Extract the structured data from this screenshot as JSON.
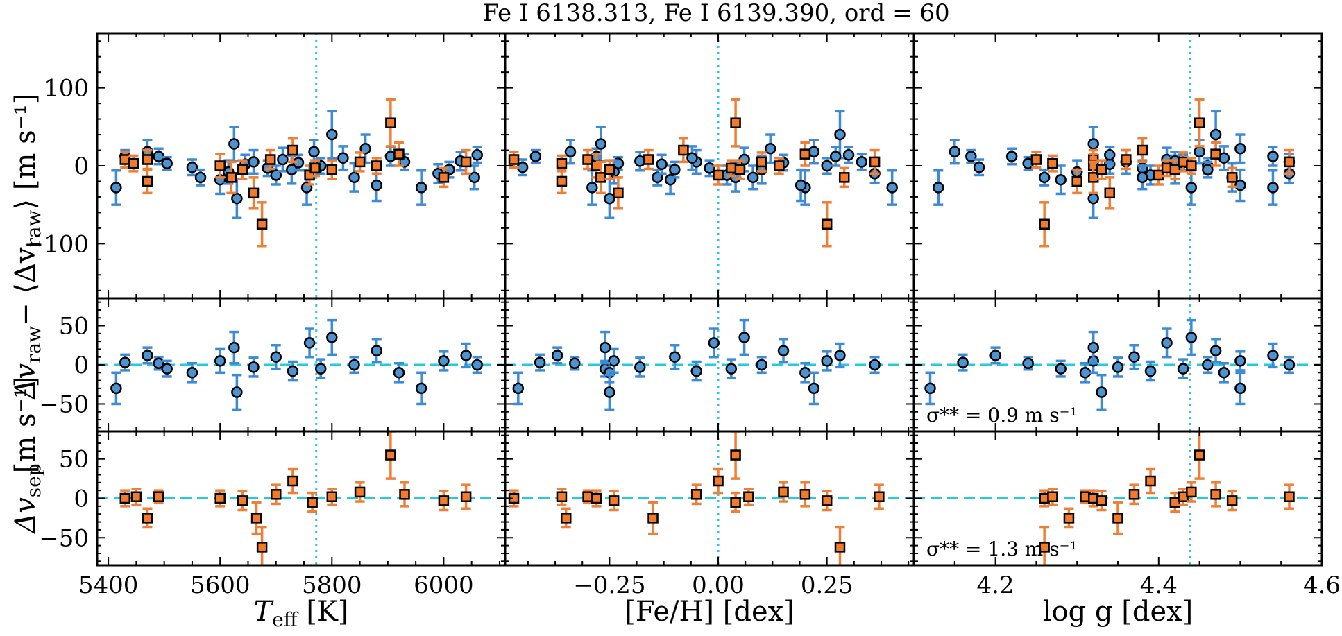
{
  "title": "Fe I 6138.313, Fe I 6139.390, ord = 60",
  "colors": {
    "blue_marker": "#4d93cf",
    "blue_err": "#3d8ad6",
    "orange_marker": "#f27b2b",
    "orange_err": "#ef7f36",
    "vline": "#29c7de",
    "hline": "#22ccdd"
  },
  "rows": {
    "top": {
      "ylabel_main": "Δv",
      "ylabel_sub": "raw",
      "ylabel_rest": "− ⟨Δv",
      "ylabel_sub2": "raw",
      "ylabel_end": "⟩ [m s⁻¹]",
      "ylim": [
        -170,
        170
      ],
      "yticks": [
        -100,
        0,
        100
      ]
    },
    "mid": {
      "ylim": [
        -85,
        85
      ],
      "yticks": [
        -50,
        0,
        50
      ],
      "sigma_label": "σ** = 0.9 m s⁻¹"
    },
    "bot": {
      "ylabel_main": "Δv",
      "ylabel_sub": "sep",
      "ylim": [
        -85,
        85
      ],
      "yticks": [
        -50,
        0,
        50
      ],
      "sigma_label": "σ** = 1.3 m s⁻¹"
    },
    "shared_ylabel": "[m s⁻¹]"
  },
  "columns": [
    {
      "key": "teff",
      "xlabel": "T",
      "xlabel_sub": "eff",
      "xlabel_rest": " [K]",
      "xlim": [
        5380,
        6110
      ],
      "xticks": [
        5400,
        5600,
        5800,
        6000
      ],
      "xtick_labels": [
        "5400",
        "5600",
        "5800",
        "6000"
      ],
      "vline": 5772
    },
    {
      "key": "feh",
      "xlabel": "[Fe/H] [dex]",
      "xlim": [
        -0.49,
        0.45
      ],
      "xticks": [
        -0.25,
        0.0,
        0.25
      ],
      "xtick_labels": [
        "−0.25",
        "0.00",
        "0.25"
      ],
      "vline": 0.0
    },
    {
      "key": "logg",
      "xlabel": "log g [dex]",
      "xlim": [
        4.1,
        4.6
      ],
      "xticks": [
        4.2,
        4.4,
        4.6
      ],
      "xtick_labels": [
        "4.2",
        "4.4",
        "4.6"
      ],
      "vline": 4.438
    }
  ],
  "chart_data": [
    {
      "type": "scatter",
      "panel": "top",
      "title": "Fe I 6138.313, Fe I 6139.390, ord = 60",
      "series": [
        {
          "name": "",
          "marker": "circle",
          "points": [
            {
              "teff": 5414,
              "feh": -0.29,
              "logg": 4.13,
              "y": -28,
              "err": 22
            },
            {
              "teff": 5430,
              "feh": -0.42,
              "logg": 4.17,
              "y": 12,
              "err": 8
            },
            {
              "teff": 5470,
              "feh": -0.34,
              "logg": 4.15,
              "y": 18,
              "err": 15
            },
            {
              "teff": 5490,
              "feh": -0.28,
              "logg": 4.22,
              "y": 12,
              "err": 10
            },
            {
              "teff": 5505,
              "feh": -0.23,
              "logg": 4.24,
              "y": 3,
              "err": 8
            },
            {
              "teff": 5550,
              "feh": -0.45,
              "logg": 4.18,
              "y": -2,
              "err": 10
            },
            {
              "teff": 5565,
              "feh": -0.14,
              "logg": 4.26,
              "y": -15,
              "err": 10
            },
            {
              "teff": 5600,
              "feh": -0.11,
              "logg": 4.28,
              "y": -18,
              "err": 18
            },
            {
              "teff": 5615,
              "feh": -0.24,
              "logg": 4.3,
              "y": -8,
              "err": 15
            },
            {
              "teff": 5625,
              "feh": -0.27,
              "logg": 4.32,
              "y": 28,
              "err": 22
            },
            {
              "teff": 5630,
              "feh": -0.25,
              "logg": 4.32,
              "y": -42,
              "err": 25
            },
            {
              "teff": 5645,
              "feh": -0.13,
              "logg": 4.34,
              "y": 2,
              "err": 12
            },
            {
              "teff": 5660,
              "feh": -0.05,
              "logg": 4.36,
              "y": 5,
              "err": 15
            },
            {
              "teff": 5685,
              "feh": -0.02,
              "logg": 4.38,
              "y": -3,
              "err": 10
            },
            {
              "teff": 5700,
              "feh": 0.02,
              "logg": 4.39,
              "y": -12,
              "err": 12
            },
            {
              "teff": 5712,
              "feh": 0.06,
              "logg": 4.41,
              "y": 8,
              "err": 15
            },
            {
              "teff": 5728,
              "feh": 0.1,
              "logg": 4.42,
              "y": -5,
              "err": 18
            },
            {
              "teff": 5740,
              "feh": 0.15,
              "logg": 4.43,
              "y": 4,
              "err": 10
            },
            {
              "teff": 5755,
              "feh": 0.2,
              "logg": 4.44,
              "y": -28,
              "err": 22
            },
            {
              "teff": 5768,
              "feh": 0.22,
              "logg": 4.45,
              "y": 18,
              "err": 15
            },
            {
              "teff": 5780,
              "feh": 0.25,
              "logg": 4.46,
              "y": 0,
              "err": 10
            },
            {
              "teff": 5800,
              "feh": 0.28,
              "logg": 4.47,
              "y": 40,
              "err": 30
            },
            {
              "teff": 5820,
              "feh": -0.06,
              "logg": 4.48,
              "y": 10,
              "err": 15
            },
            {
              "teff": 5840,
              "feh": 0.04,
              "logg": 4.49,
              "y": -15,
              "err": 18
            },
            {
              "teff": 5860,
              "feh": 0.12,
              "logg": 4.5,
              "y": 22,
              "err": 18
            },
            {
              "teff": 5880,
              "feh": 0.19,
              "logg": 4.5,
              "y": -25,
              "err": 20
            },
            {
              "teff": 5905,
              "feh": 0.27,
              "logg": 4.54,
              "y": 12,
              "err": 12
            },
            {
              "teff": 5930,
              "feh": 0.33,
              "logg": 4.56,
              "y": 5,
              "err": 10
            },
            {
              "teff": 5960,
              "feh": 0.4,
              "logg": 4.54,
              "y": -28,
              "err": 22
            },
            {
              "teff": 5990,
              "feh": 0.36,
              "logg": 4.56,
              "y": -10,
              "err": 12
            },
            {
              "teff": 6010,
              "feh": -0.1,
              "logg": 4.46,
              "y": -5,
              "err": 10
            },
            {
              "teff": 6030,
              "feh": -0.18,
              "logg": 4.42,
              "y": 6,
              "err": 12
            },
            {
              "teff": 6055,
              "feh": 0.08,
              "logg": 4.38,
              "y": -15,
              "err": 15
            },
            {
              "teff": 6060,
              "feh": 0.3,
              "logg": 4.34,
              "y": 14,
              "err": 10
            }
          ]
        },
        {
          "name": "",
          "marker": "square",
          "points": [
            {
              "teff": 5430,
              "feh": -0.47,
              "logg": 4.25,
              "y": 8,
              "err": 10
            },
            {
              "teff": 5445,
              "feh": -0.36,
              "logg": 4.27,
              "y": 3,
              "err": 10
            },
            {
              "teff": 5470,
              "feh": -0.36,
              "logg": 4.3,
              "y": -20,
              "err": 15
            },
            {
              "teff": 5470,
              "feh": -0.3,
              "logg": 4.32,
              "y": 8,
              "err": 12
            },
            {
              "teff": 5600,
              "feh": -0.28,
              "logg": 4.32,
              "y": 0,
              "err": 15
            },
            {
              "teff": 5620,
              "feh": -0.27,
              "logg": 4.32,
              "y": -15,
              "err": 20
            },
            {
              "teff": 5640,
              "feh": -0.25,
              "logg": 4.33,
              "y": -5,
              "err": 12
            },
            {
              "teff": 5660,
              "feh": -0.23,
              "logg": 4.34,
              "y": -35,
              "err": 20
            },
            {
              "teff": 5675,
              "feh": 0.25,
              "logg": 4.26,
              "y": -75,
              "err": 28
            },
            {
              "teff": 5690,
              "feh": -0.16,
              "logg": 4.36,
              "y": 8,
              "err": 12
            },
            {
              "teff": 5730,
              "feh": -0.08,
              "logg": 4.38,
              "y": 20,
              "err": 15
            },
            {
              "teff": 5760,
              "feh": 0.0,
              "logg": 4.4,
              "y": -12,
              "err": 12
            },
            {
              "teff": 5770,
              "feh": 0.03,
              "logg": 4.41,
              "y": -3,
              "err": 10
            },
            {
              "teff": 5800,
              "feh": 0.05,
              "logg": 4.42,
              "y": -5,
              "err": 12
            },
            {
              "teff": 5850,
              "feh": 0.1,
              "logg": 4.43,
              "y": 5,
              "err": 12
            },
            {
              "teff": 5880,
              "feh": 0.14,
              "logg": 4.44,
              "y": 0,
              "err": 10
            },
            {
              "teff": 5905,
              "feh": 0.04,
              "logg": 4.45,
              "y": 55,
              "err": 30
            },
            {
              "teff": 5920,
              "feh": 0.2,
              "logg": 4.47,
              "y": 15,
              "err": 15
            },
            {
              "teff": 6000,
              "feh": 0.29,
              "logg": 4.49,
              "y": -15,
              "err": 12
            },
            {
              "teff": 6040,
              "feh": 0.36,
              "logg": 4.56,
              "y": 5,
              "err": 15
            }
          ]
        }
      ]
    },
    {
      "type": "scatter",
      "panel": "mid",
      "series": [
        {
          "name": "",
          "marker": "circle",
          "points": [
            {
              "teff": 5414,
              "feh": -0.46,
              "logg": 4.12,
              "y": -30,
              "err": 20
            },
            {
              "teff": 5430,
              "feh": -0.41,
              "logg": 4.16,
              "y": 3,
              "err": 10
            },
            {
              "teff": 5470,
              "feh": -0.37,
              "logg": 4.2,
              "y": 12,
              "err": 10
            },
            {
              "teff": 5490,
              "feh": -0.33,
              "logg": 4.24,
              "y": 2,
              "err": 8
            },
            {
              "teff": 5505,
              "feh": -0.26,
              "logg": 4.28,
              "y": -5,
              "err": 10
            },
            {
              "teff": 5550,
              "feh": -0.25,
              "logg": 4.31,
              "y": -10,
              "err": 12
            },
            {
              "teff": 5600,
              "feh": -0.24,
              "logg": 4.32,
              "y": 5,
              "err": 15
            },
            {
              "teff": 5625,
              "feh": -0.26,
              "logg": 4.32,
              "y": 22,
              "err": 20
            },
            {
              "teff": 5630,
              "feh": -0.25,
              "logg": 4.33,
              "y": -35,
              "err": 22
            },
            {
              "teff": 5660,
              "feh": -0.18,
              "logg": 4.35,
              "y": -3,
              "err": 12
            },
            {
              "teff": 5700,
              "feh": -0.1,
              "logg": 4.37,
              "y": 10,
              "err": 15
            },
            {
              "teff": 5730,
              "feh": -0.05,
              "logg": 4.39,
              "y": -8,
              "err": 12
            },
            {
              "teff": 5760,
              "feh": -0.01,
              "logg": 4.41,
              "y": 28,
              "err": 18
            },
            {
              "teff": 5780,
              "feh": 0.03,
              "logg": 4.43,
              "y": -5,
              "err": 12
            },
            {
              "teff": 5800,
              "feh": 0.06,
              "logg": 4.44,
              "y": 35,
              "err": 22
            },
            {
              "teff": 5840,
              "feh": 0.1,
              "logg": 4.46,
              "y": 0,
              "err": 10
            },
            {
              "teff": 5880,
              "feh": 0.15,
              "logg": 4.47,
              "y": 18,
              "err": 15
            },
            {
              "teff": 5920,
              "feh": 0.2,
              "logg": 4.48,
              "y": -10,
              "err": 12
            },
            {
              "teff": 5960,
              "feh": 0.22,
              "logg": 4.5,
              "y": -30,
              "err": 20
            },
            {
              "teff": 6000,
              "feh": 0.25,
              "logg": 4.5,
              "y": 5,
              "err": 12
            },
            {
              "teff": 6040,
              "feh": 0.28,
              "logg": 4.54,
              "y": 12,
              "err": 15
            },
            {
              "teff": 6060,
              "feh": 0.36,
              "logg": 4.56,
              "y": 0,
              "err": 10
            }
          ]
        }
      ]
    },
    {
      "type": "scatter",
      "panel": "bot",
      "series": [
        {
          "name": "",
          "marker": "square",
          "points": [
            {
              "teff": 5430,
              "feh": -0.47,
              "logg": 4.26,
              "y": 0,
              "err": 10
            },
            {
              "teff": 5450,
              "feh": -0.36,
              "logg": 4.27,
              "y": 2,
              "err": 10
            },
            {
              "teff": 5470,
              "feh": -0.35,
              "logg": 4.29,
              "y": -25,
              "err": 12
            },
            {
              "teff": 5490,
              "feh": -0.3,
              "logg": 4.31,
              "y": 2,
              "err": 8
            },
            {
              "teff": 5600,
              "feh": -0.28,
              "logg": 4.32,
              "y": 0,
              "err": 10
            },
            {
              "teff": 5640,
              "feh": -0.24,
              "logg": 4.33,
              "y": -3,
              "err": 12
            },
            {
              "teff": 5665,
              "feh": -0.15,
              "logg": 4.35,
              "y": -25,
              "err": 20
            },
            {
              "teff": 5675,
              "feh": 0.28,
              "logg": 4.26,
              "y": -62,
              "err": 25
            },
            {
              "teff": 5700,
              "feh": -0.05,
              "logg": 4.37,
              "y": 5,
              "err": 12
            },
            {
              "teff": 5730,
              "feh": 0.0,
              "logg": 4.39,
              "y": 22,
              "err": 15
            },
            {
              "teff": 5765,
              "feh": 0.04,
              "logg": 4.42,
              "y": -5,
              "err": 12
            },
            {
              "teff": 5800,
              "feh": 0.07,
              "logg": 4.43,
              "y": 2,
              "err": 10
            },
            {
              "teff": 5850,
              "feh": 0.15,
              "logg": 4.44,
              "y": 8,
              "err": 12
            },
            {
              "teff": 5905,
              "feh": 0.04,
              "logg": 4.45,
              "y": 55,
              "err": 30
            },
            {
              "teff": 5930,
              "feh": 0.2,
              "logg": 4.47,
              "y": 5,
              "err": 15
            },
            {
              "teff": 6000,
              "feh": 0.25,
              "logg": 4.49,
              "y": -3,
              "err": 12
            },
            {
              "teff": 6040,
              "feh": 0.37,
              "logg": 4.56,
              "y": 2,
              "err": 15
            }
          ]
        }
      ]
    }
  ]
}
